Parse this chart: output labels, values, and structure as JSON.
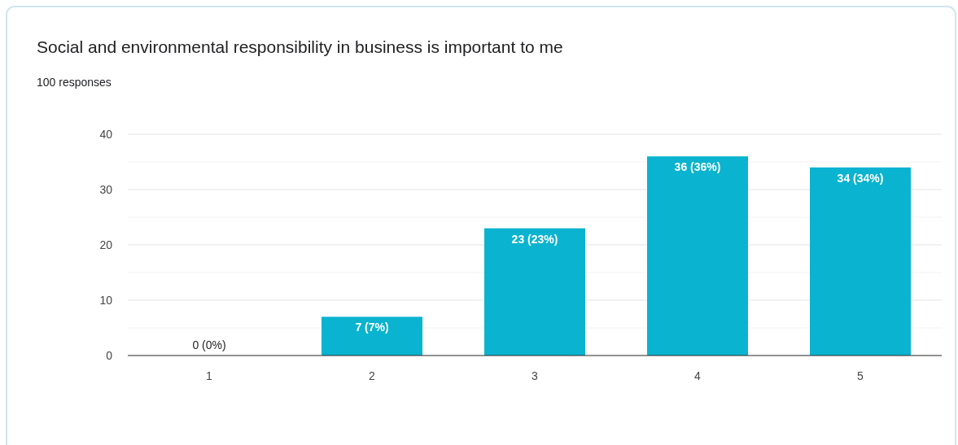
{
  "chart_data": {
    "type": "bar",
    "title": "Social and environmental responsibility in business is important to me",
    "subtitle": "100 responses",
    "categories": [
      "1",
      "2",
      "3",
      "4",
      "5"
    ],
    "values": [
      0,
      7,
      23,
      36,
      34
    ],
    "value_labels": [
      "0 (0%)",
      "7 (7%)",
      "23 (23%)",
      "36 (36%)",
      "34 (34%)"
    ],
    "color": "#0ab3cf",
    "ylim": [
      0,
      40
    ],
    "yticks": [
      0,
      {
        "value": 5,
        "label": null
      },
      10,
      {
        "value": 15,
        "label": null
      },
      20,
      {
        "value": 25,
        "label": null
      },
      30,
      {
        "value": 35,
        "label": null
      },
      40
    ],
    "grid": "y"
  }
}
